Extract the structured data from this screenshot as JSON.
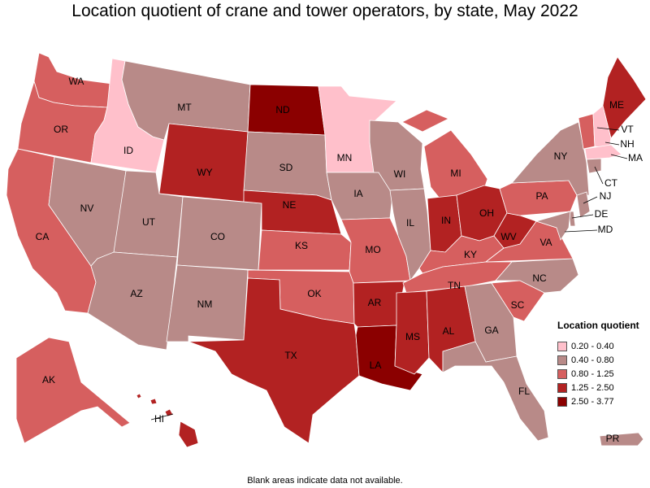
{
  "title": "Location quotient of crane and tower operators, by state, May 2022",
  "footnote": "Blank areas indicate data not available.",
  "legend": {
    "title": "Location quotient",
    "items": [
      {
        "label": "0.20 - 0.40",
        "color": "#ffc0cb"
      },
      {
        "label": "0.40 - 0.80",
        "color": "#b88a88"
      },
      {
        "label": "0.80 - 1.25",
        "color": "#d65f5f"
      },
      {
        "label": "1.25 - 2.50",
        "color": "#b22222"
      },
      {
        "label": "2.50 - 3.77",
        "color": "#8b0000"
      }
    ]
  },
  "states": [
    {
      "abbr": "WA",
      "cls": 2
    },
    {
      "abbr": "OR",
      "cls": 2
    },
    {
      "abbr": "CA",
      "cls": 2
    },
    {
      "abbr": "ID",
      "cls": 0
    },
    {
      "abbr": "NV",
      "cls": 1
    },
    {
      "abbr": "MT",
      "cls": 1
    },
    {
      "abbr": "WY",
      "cls": 3
    },
    {
      "abbr": "UT",
      "cls": 1
    },
    {
      "abbr": "AZ",
      "cls": 1
    },
    {
      "abbr": "CO",
      "cls": 1
    },
    {
      "abbr": "NM",
      "cls": 1
    },
    {
      "abbr": "ND",
      "cls": 4
    },
    {
      "abbr": "SD",
      "cls": 1
    },
    {
      "abbr": "NE",
      "cls": 3
    },
    {
      "abbr": "KS",
      "cls": 2
    },
    {
      "abbr": "OK",
      "cls": 2
    },
    {
      "abbr": "TX",
      "cls": 3
    },
    {
      "abbr": "MN",
      "cls": 0
    },
    {
      "abbr": "IA",
      "cls": 1
    },
    {
      "abbr": "MO",
      "cls": 2
    },
    {
      "abbr": "AR",
      "cls": 3
    },
    {
      "abbr": "LA",
      "cls": 4
    },
    {
      "abbr": "WI",
      "cls": 1
    },
    {
      "abbr": "IL",
      "cls": 1
    },
    {
      "abbr": "MI",
      "cls": 2
    },
    {
      "abbr": "IN",
      "cls": 3
    },
    {
      "abbr": "OH",
      "cls": 3
    },
    {
      "abbr": "KY",
      "cls": 2
    },
    {
      "abbr": "TN",
      "cls": 2
    },
    {
      "abbr": "MS",
      "cls": 3
    },
    {
      "abbr": "AL",
      "cls": 3
    },
    {
      "abbr": "GA",
      "cls": 1
    },
    {
      "abbr": "FL",
      "cls": 1
    },
    {
      "abbr": "SC",
      "cls": 2
    },
    {
      "abbr": "NC",
      "cls": 1
    },
    {
      "abbr": "VA",
      "cls": 2
    },
    {
      "abbr": "WV",
      "cls": 3
    },
    {
      "abbr": "PA",
      "cls": 2
    },
    {
      "abbr": "NY",
      "cls": 1
    },
    {
      "abbr": "ME",
      "cls": 3
    },
    {
      "abbr": "VT",
      "cls": 2
    },
    {
      "abbr": "NH",
      "cls": 0
    },
    {
      "abbr": "MA",
      "cls": 0
    },
    {
      "abbr": "CT",
      "cls": 1
    },
    {
      "abbr": "NJ",
      "cls": 1
    },
    {
      "abbr": "DE",
      "cls": 1
    },
    {
      "abbr": "MD",
      "cls": 1
    },
    {
      "abbr": "AK",
      "cls": 2
    },
    {
      "abbr": "HI",
      "cls": 3
    },
    {
      "abbr": "PR",
      "cls": 1
    }
  ]
}
